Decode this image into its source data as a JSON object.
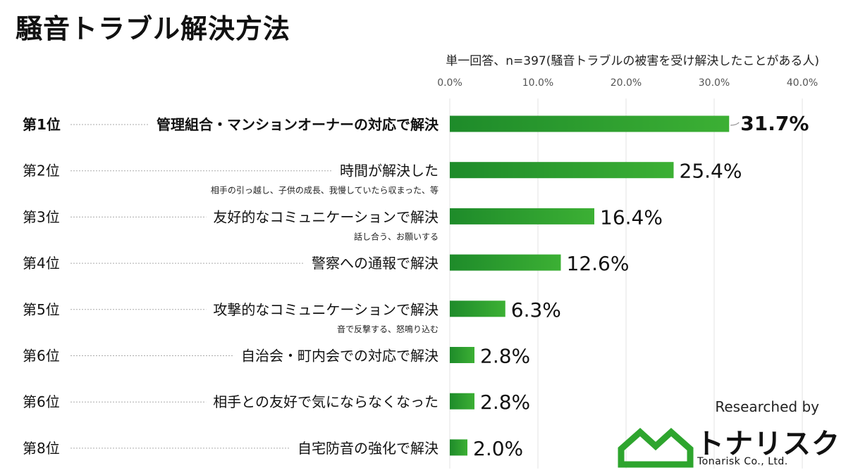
{
  "title": "騒音トラブル解決方法",
  "subtitle": "単一回答、n=397(騒音トラブルの被害を受け解決したことがある人)",
  "chart_data": {
    "type": "bar",
    "orientation": "horizontal",
    "xlim": [
      0,
      40
    ],
    "x_ticks": [
      "0.0%",
      "10.0%",
      "20.0%",
      "30.0%",
      "40.0%"
    ],
    "grid": true,
    "bar_color": "#2e9e2c",
    "categories": [
      {
        "rank": "第1位",
        "label": "管理組合・マンションオーナーの対応で解決",
        "note": "",
        "value": 31.7,
        "value_label": "31.7%"
      },
      {
        "rank": "第2位",
        "label": "時間が解決した",
        "note": "相手の引っ越し、子供の成長、我慢していたら収まった、等",
        "value": 25.4,
        "value_label": "25.4%"
      },
      {
        "rank": "第3位",
        "label": "友好的なコミュニケーションで解決",
        "note": "話し合う、お願いする",
        "value": 16.4,
        "value_label": "16.4%"
      },
      {
        "rank": "第4位",
        "label": "警察への通報で解決",
        "note": "",
        "value": 12.6,
        "value_label": "12.6%"
      },
      {
        "rank": "第5位",
        "label": "攻撃的なコミュニケーションで解決",
        "note": "音で反撃する、怒鳴り込む",
        "value": 6.3,
        "value_label": "6.3%"
      },
      {
        "rank": "第6位",
        "label": "自治会・町内会での対応で解決",
        "note": "",
        "value": 2.8,
        "value_label": "2.8%"
      },
      {
        "rank": "第6位",
        "label": "相手との友好で気にならなくなった",
        "note": "",
        "value": 2.8,
        "value_label": "2.8%"
      },
      {
        "rank": "第8位",
        "label": "自宅防音の強化で解決",
        "note": "",
        "value": 2.0,
        "value_label": "2.0%"
      }
    ]
  },
  "credit": "Researched by",
  "logo": {
    "name": "トナリスク",
    "english": "Tonarisk Co., Ltd.",
    "icon": "house-outline-logo",
    "color": "#2ea52e"
  }
}
